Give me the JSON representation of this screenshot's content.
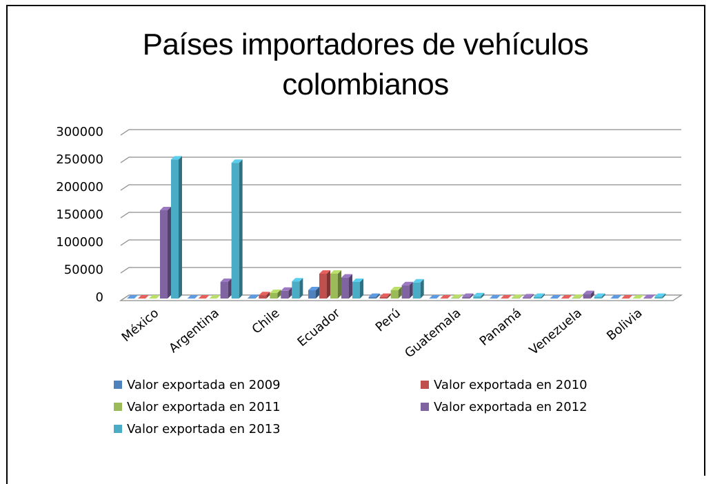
{
  "chart_data": {
    "type": "bar3d",
    "title": "Países importadores de vehículos colombianos",
    "categories": [
      "México",
      "Argentina",
      "Chile",
      "Ecuador",
      "Perú",
      "Guatemala",
      "Panamá",
      "Venezuela",
      "Bolivia"
    ],
    "series": [
      {
        "name": "Valor exportada en 2009",
        "color": "#4f81bd",
        "values": [
          0,
          0,
          1000,
          15000,
          3000,
          0,
          0,
          0,
          0
        ]
      },
      {
        "name": "Valor exportada en 2010",
        "color": "#c0504d",
        "values": [
          0,
          0,
          6000,
          45000,
          3000,
          0,
          0,
          0,
          0
        ]
      },
      {
        "name": "Valor exportada en 2011",
        "color": "#9bbb59",
        "values": [
          0,
          0,
          10000,
          45000,
          15000,
          1000,
          1000,
          1000,
          0
        ]
      },
      {
        "name": "Valor exportada en 2012",
        "color": "#8064a2",
        "values": [
          160000,
          30000,
          14000,
          38000,
          24000,
          3000,
          2000,
          8000,
          1000
        ]
      },
      {
        "name": "Valor exportada en 2013",
        "color": "#4bacc6",
        "values": [
          252000,
          246000,
          31000,
          30000,
          29000,
          4000,
          3000,
          3000,
          3000
        ]
      }
    ],
    "ylim": [
      0,
      300000
    ],
    "yticks": [
      0,
      50000,
      100000,
      150000,
      200000,
      250000,
      300000
    ],
    "grid": true
  }
}
